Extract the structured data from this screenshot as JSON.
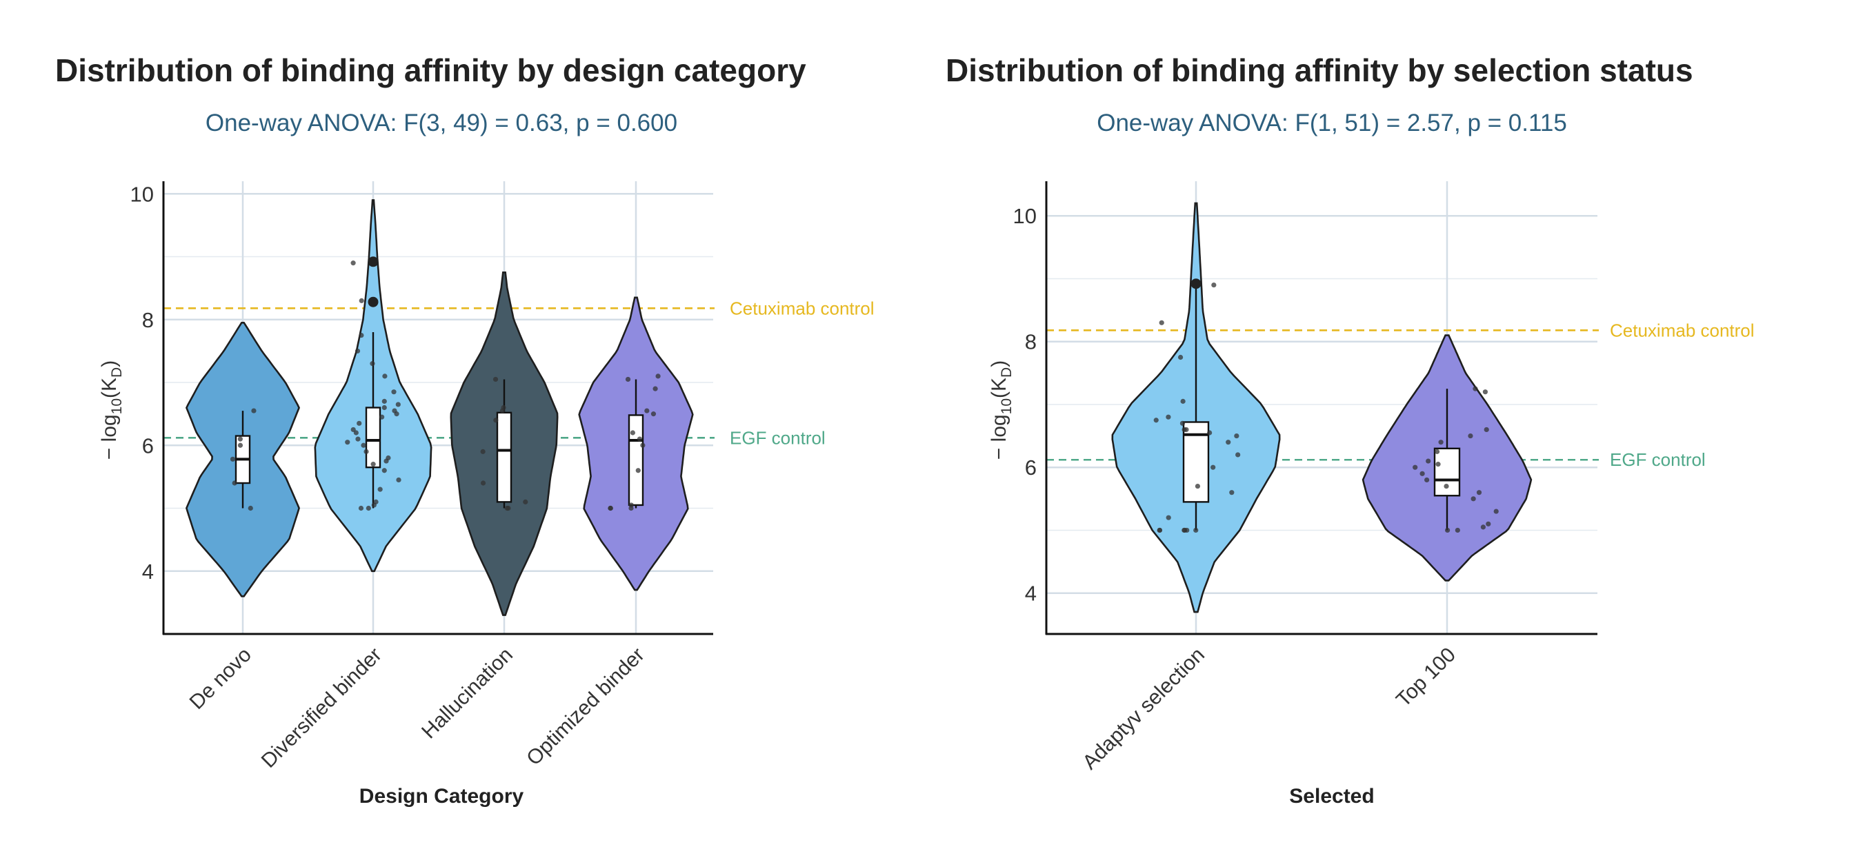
{
  "chart_data": [
    {
      "type": "violin",
      "title": "Distribution of binding affinity by design category",
      "subtitle": "One-way ANOVA: F(3, 49) = 0.63, p = 0.600",
      "xlabel": "Design Category",
      "ylabel_main": "− log",
      "ylabel_sub": "10",
      "ylabel_paren_open": "(K",
      "ylabel_sub2": "D",
      "ylabel_paren_close": ")",
      "ylim": [
        3,
        10.2
      ],
      "yticks": [
        4,
        6,
        8,
        10
      ],
      "categories": [
        "De novo",
        "Diversified binder",
        "Hallucination",
        "Optimized binder"
      ],
      "colors": [
        "#5fa6d6",
        "#86cbf1",
        "#455a66",
        "#8f8bdf"
      ],
      "reference_lines": [
        {
          "label": "Cetuximab control",
          "value": 8.18,
          "color": "#e6b820"
        },
        {
          "label": "EGF control",
          "value": 6.12,
          "color": "#4fa889"
        }
      ],
      "series": [
        {
          "name": "De novo",
          "min": 3.6,
          "max": 7.95,
          "q1": 5.4,
          "median": 5.78,
          "q3": 6.15,
          "whisker_low": 5.0,
          "whisker_high": 6.55,
          "density": [
            [
              3.6,
              0.02
            ],
            [
              4.0,
              0.32
            ],
            [
              4.5,
              0.78
            ],
            [
              5.0,
              0.95
            ],
            [
              5.5,
              0.72
            ],
            [
              5.8,
              0.5
            ],
            [
              6.2,
              0.78
            ],
            [
              6.6,
              0.95
            ],
            [
              7.0,
              0.72
            ],
            [
              7.5,
              0.32
            ],
            [
              7.95,
              0.02
            ]
          ],
          "points": [
            6.55,
            5.0,
            6.1,
            5.78,
            6.0,
            5.4
          ]
        },
        {
          "name": "Diversified binder",
          "min": 4.0,
          "max": 9.9,
          "q1": 5.65,
          "median": 6.08,
          "q3": 6.6,
          "whisker_low": 5.0,
          "whisker_high": 7.8,
          "density": [
            [
              4.0,
              0.02
            ],
            [
              4.4,
              0.22
            ],
            [
              5.0,
              0.72
            ],
            [
              5.5,
              0.96
            ],
            [
              6.0,
              0.98
            ],
            [
              6.5,
              0.75
            ],
            [
              7.0,
              0.45
            ],
            [
              7.5,
              0.28
            ],
            [
              8.0,
              0.17
            ],
            [
              8.5,
              0.11
            ],
            [
              9.0,
              0.07
            ],
            [
              9.5,
              0.04
            ],
            [
              9.9,
              0.01
            ]
          ],
          "points": [
            5.0,
            5.0,
            5.05,
            5.1,
            5.3,
            5.45,
            5.6,
            5.7,
            5.75,
            5.8,
            5.9,
            6.0,
            6.05,
            6.1,
            6.2,
            6.25,
            6.35,
            6.45,
            6.5,
            6.55,
            6.6,
            6.65,
            6.7,
            6.85,
            7.1,
            7.3,
            7.5,
            7.75,
            8.3,
            8.9
          ],
          "outliers": [
            8.92,
            8.28
          ]
        },
        {
          "name": "Hallucination",
          "min": 3.3,
          "max": 8.75,
          "q1": 5.1,
          "median": 5.92,
          "q3": 6.52,
          "whisker_low": 5.0,
          "whisker_high": 7.05,
          "density": [
            [
              3.3,
              0.02
            ],
            [
              3.8,
              0.2
            ],
            [
              4.4,
              0.5
            ],
            [
              5.0,
              0.72
            ],
            [
              5.5,
              0.78
            ],
            [
              6.0,
              0.88
            ],
            [
              6.5,
              0.9
            ],
            [
              7.0,
              0.68
            ],
            [
              7.5,
              0.38
            ],
            [
              8.0,
              0.16
            ],
            [
              8.5,
              0.05
            ],
            [
              8.75,
              0.02
            ]
          ],
          "points": [
            5.0,
            5.0,
            5.1,
            5.4,
            5.9,
            6.4,
            6.55,
            7.05,
            6.6
          ]
        },
        {
          "name": "Optimized binder",
          "min": 3.7,
          "max": 8.35,
          "q1": 5.05,
          "median": 6.08,
          "q3": 6.48,
          "whisker_low": 5.0,
          "whisker_high": 7.05,
          "density": [
            [
              3.7,
              0.02
            ],
            [
              4.0,
              0.22
            ],
            [
              4.5,
              0.6
            ],
            [
              5.0,
              0.88
            ],
            [
              5.5,
              0.76
            ],
            [
              6.0,
              0.82
            ],
            [
              6.5,
              0.96
            ],
            [
              7.0,
              0.72
            ],
            [
              7.5,
              0.32
            ],
            [
              8.0,
              0.1
            ],
            [
              8.35,
              0.02
            ]
          ],
          "points": [
            5.0,
            5.0,
            5.0,
            5.05,
            5.6,
            6.0,
            6.1,
            6.5,
            6.55,
            6.9,
            7.1,
            7.05,
            6.2
          ]
        }
      ]
    },
    {
      "type": "violin",
      "title": "Distribution of binding affinity by selection status",
      "subtitle": "One-way ANOVA: F(1, 51) = 2.57, p = 0.115",
      "xlabel": "Selected",
      "ylabel_main": "− log",
      "ylabel_sub": "10",
      "ylabel_paren_open": "(K",
      "ylabel_sub2": "D",
      "ylabel_paren_close": ")",
      "ylim": [
        3.35,
        10.55
      ],
      "yticks": [
        4,
        6,
        8,
        10
      ],
      "categories": [
        "Adaptyv selection",
        "Top 100"
      ],
      "colors": [
        "#86cbf1",
        "#8f8bdf"
      ],
      "reference_lines": [
        {
          "label": "Cetuximab control",
          "value": 8.18,
          "color": "#e6b820"
        },
        {
          "label": "EGF control",
          "value": 6.12,
          "color": "#4fa889"
        }
      ],
      "series": [
        {
          "name": "Adaptyv selection",
          "min": 3.7,
          "max": 10.2,
          "q1": 5.45,
          "median": 6.52,
          "q3": 6.72,
          "whisker_low": 5.0,
          "whisker_high": 8.92,
          "density": [
            [
              3.7,
              0.02
            ],
            [
              4.0,
              0.08
            ],
            [
              4.5,
              0.22
            ],
            [
              5.0,
              0.52
            ],
            [
              5.5,
              0.72
            ],
            [
              6.0,
              0.94
            ],
            [
              6.5,
              1.0
            ],
            [
              7.0,
              0.78
            ],
            [
              7.5,
              0.42
            ],
            [
              8.0,
              0.14
            ],
            [
              8.5,
              0.08
            ],
            [
              9.0,
              0.06
            ],
            [
              9.5,
              0.04
            ],
            [
              10.2,
              0.01
            ]
          ],
          "points": [
            5.0,
            5.0,
            5.0,
            5.0,
            5.0,
            5.0,
            5.2,
            5.6,
            5.7,
            6.0,
            6.2,
            6.4,
            6.5,
            6.55,
            6.6,
            6.6,
            6.7,
            6.75,
            6.8,
            7.05,
            7.75,
            8.3,
            8.9
          ],
          "outliers": [
            8.92
          ]
        },
        {
          "name": "Top 100",
          "min": 4.2,
          "max": 8.1,
          "q1": 5.55,
          "median": 5.8,
          "q3": 6.3,
          "whisker_low": 5.0,
          "whisker_high": 7.25,
          "density": [
            [
              4.2,
              0.02
            ],
            [
              4.6,
              0.3
            ],
            [
              5.0,
              0.72
            ],
            [
              5.5,
              0.94
            ],
            [
              5.8,
              1.0
            ],
            [
              6.1,
              0.9
            ],
            [
              6.5,
              0.72
            ],
            [
              7.0,
              0.48
            ],
            [
              7.5,
              0.22
            ],
            [
              8.1,
              0.02
            ]
          ],
          "points": [
            5.0,
            5.0,
            5.05,
            5.1,
            5.3,
            5.5,
            5.6,
            5.7,
            5.8,
            5.9,
            6.0,
            6.05,
            6.1,
            6.25,
            6.4,
            6.5,
            6.6,
            7.2,
            7.25
          ]
        }
      ]
    }
  ]
}
